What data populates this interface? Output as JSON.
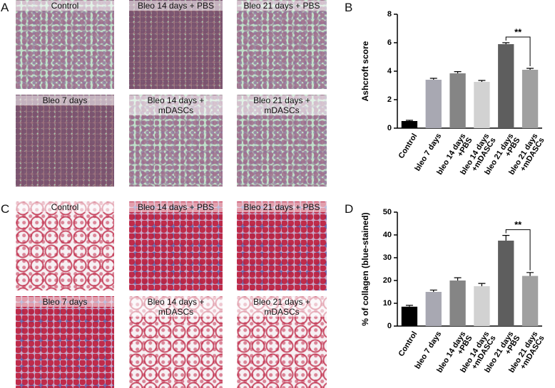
{
  "image_panels": [
    {
      "letter": "A",
      "captions": [
        "Control",
        "Bleo 14 days + PBS",
        "Bleo 21 days + PBS",
        "Bleo 7 days",
        "Bleo 14 days + mDASCs",
        "Bleo 21 days + mDASCs"
      ]
    },
    {
      "letter": "C",
      "captions": [
        "Control",
        "Bleo 14 days + PBS",
        "Bleo 21 days + PBS",
        "Bleo 7 days",
        "Bleo 14 days + mDASCs",
        "Bleo 21 days + mDASCs"
      ]
    }
  ],
  "chart_data": [
    {
      "type": "bar",
      "letter": "B",
      "y_label": "Ashcroft score",
      "categories": [
        "Control",
        "bleo 7 days",
        "bleo 14 days\n+PBS",
        "bleo 14 days\n+mDASCs",
        "bleo 21 days\n+PBS",
        "bleo 21 days\n+mDASCs"
      ],
      "values": [
        0.5,
        3.4,
        3.85,
        3.25,
        5.9,
        4.1
      ],
      "errors": [
        0.05,
        0.1,
        0.12,
        0.1,
        0.1,
        0.1
      ],
      "colors": [
        "#000000",
        "#a8a8b2",
        "#858585",
        "#d2d2d2",
        "#5e5e5e",
        "#a0a0a0"
      ],
      "ylim": [
        0,
        8
      ],
      "yticks": [
        0,
        2,
        4,
        6,
        8
      ],
      "annotation": {
        "text": "**",
        "from": 4,
        "to": 5
      }
    },
    {
      "type": "bar",
      "letter": "D",
      "y_label": "% of collagen (blue-stained)",
      "categories": [
        "Control",
        "bleo 7 days",
        "bleo 14 days\n+PBS",
        "bleo 14 days\n+mDASCs",
        "bleo 21 days\n+PBS",
        "bleo 21 days\n+mDASCs"
      ],
      "values": [
        8.5,
        15,
        20,
        17.5,
        37.5,
        22
      ],
      "errors": [
        0.6,
        0.8,
        1.2,
        1.2,
        2.3,
        1.5
      ],
      "colors": [
        "#000000",
        "#a8a8b2",
        "#858585",
        "#d2d2d2",
        "#5e5e5e",
        "#a0a0a0"
      ],
      "ylim": [
        0,
        50
      ],
      "yticks": [
        0,
        10,
        20,
        30,
        40,
        50
      ],
      "annotation": {
        "text": "**",
        "from": 4,
        "to": 5
      }
    }
  ]
}
